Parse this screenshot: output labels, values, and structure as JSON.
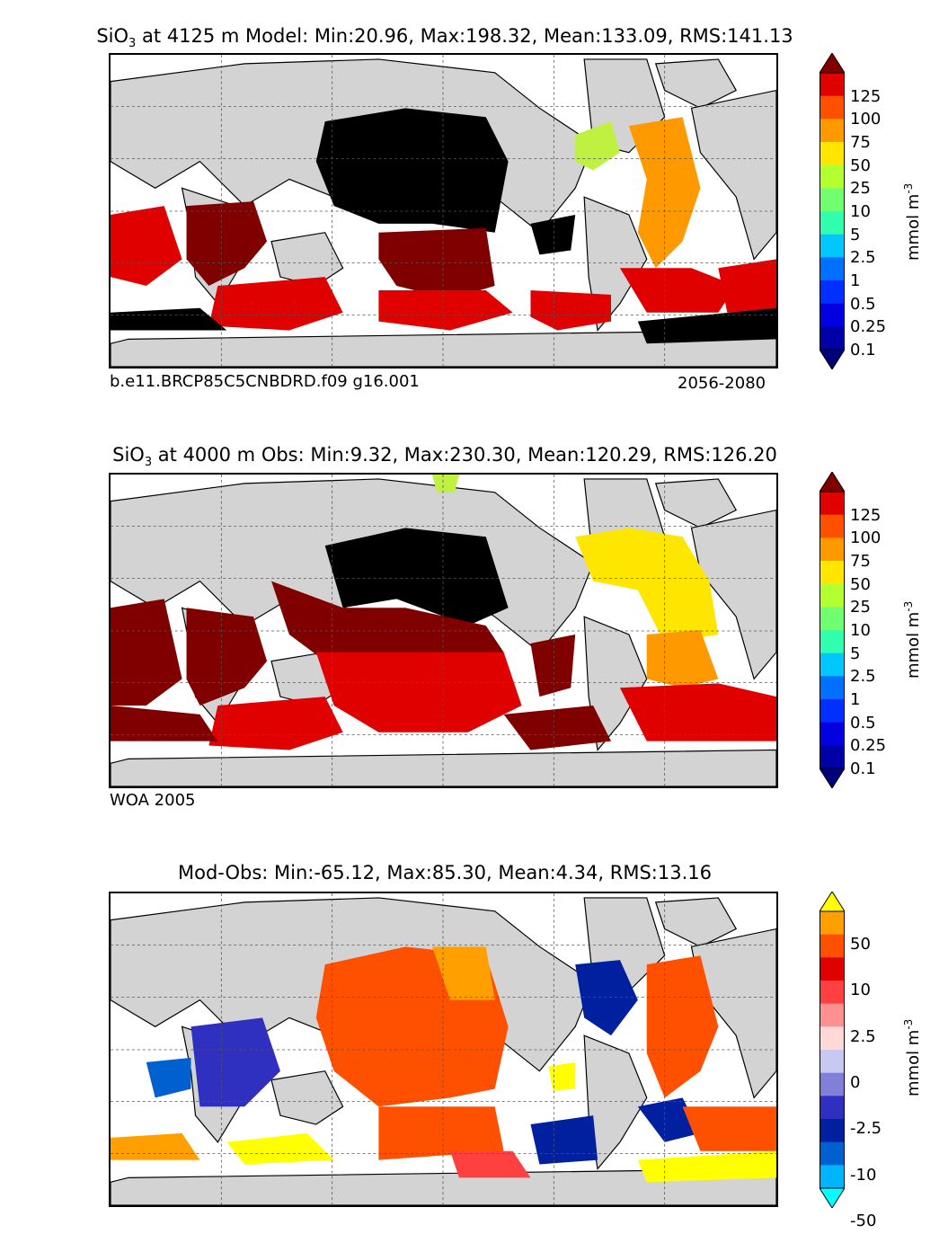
{
  "panels": [
    {
      "title_prefix": "SiO",
      "title_sub": "3",
      "title_rest": " at 4125 m Model: Min:20.96, Max:198.32, Mean:133.09, RMS:141.13",
      "note_left": "b.e11.BRCP85C5CNBDRD.f09 g16.001",
      "note_right": "2056-2080",
      "colorbar_ticks": [
        "125",
        "100",
        "75",
        "50",
        "25",
        "10",
        "5",
        "2.5",
        "1",
        "0.5",
        "0.25",
        "0.1"
      ],
      "units": "mmol m",
      "units_sup": "-3"
    },
    {
      "title_prefix": "SiO",
      "title_sub": "3",
      "title_rest": " at 4000 m Obs: Min:9.32, Max:230.30, Mean:120.29, RMS:126.20",
      "note_left": "WOA 2005",
      "note_right": "",
      "colorbar_ticks": [
        "125",
        "100",
        "75",
        "50",
        "25",
        "10",
        "5",
        "2.5",
        "1",
        "0.5",
        "0.25",
        "0.1"
      ],
      "units": "mmol m",
      "units_sup": "-3"
    },
    {
      "title_prefix": "",
      "title_sub": "",
      "title_rest": "Mod-Obs: Min:-65.12, Max:85.30, Mean:4.34, RMS:13.16",
      "note_left": "",
      "note_right": "",
      "colorbar_ticks": [
        "50",
        "10",
        "2.5",
        "0",
        "-2.5",
        "-10",
        "-50"
      ],
      "units": "mmol m",
      "units_sup": "-3"
    }
  ],
  "colors": {
    "land": "#d3d3d3",
    "nodata": "#ffffff",
    "black": "#000000",
    "darkred": "#800000",
    "red": "#e00000",
    "orangered": "#ff5000",
    "orange": "#ff9900",
    "yellow": "#ffe600",
    "lime": "#c0f040",
    "blue": "#0000ff"
  },
  "colorbar_abs_colors": [
    "#00007a",
    "#0000a8",
    "#0000e0",
    "#0030ff",
    "#0070ff",
    "#00c8ff",
    "#30ffb0",
    "#70ff70",
    "#b4ff30",
    "#ffe600",
    "#ff9900",
    "#ff5000",
    "#e00000",
    "#800000"
  ],
  "colorbar_diff_colors": [
    "#00ffff",
    "#00b4ff",
    "#0060d0",
    "#0020a0",
    "#3030c0",
    "#8080d8",
    "#c8c8f0",
    "#ffd8d8",
    "#ff9090",
    "#ff4040",
    "#e00000",
    "#ff5000",
    "#ffa000",
    "#ffff00"
  ]
}
